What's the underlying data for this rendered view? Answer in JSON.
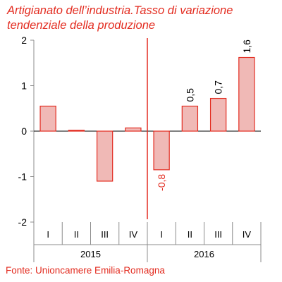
{
  "title_lines": [
    "Artigianato dell’industria.Tasso di variazione",
    "tendenziale della produzione"
  ],
  "source": "Fonte: Unioncamere Emilia-Romagna",
  "colors": {
    "accent": "#e32c20",
    "bar_fill": "#f0b9b6",
    "bar_stroke": "#e32c20",
    "axis": "#8c8c8c",
    "text": "#000000"
  },
  "chart_data": {
    "type": "bar",
    "years": [
      {
        "label": "2015",
        "quarters": [
          "I",
          "II",
          "III",
          "IV"
        ]
      },
      {
        "label": "2016",
        "quarters": [
          "I",
          "II",
          "III",
          "IV"
        ]
      }
    ],
    "values": [
      0.55,
      0.02,
      -1.1,
      0.07,
      -0.85,
      0.55,
      0.72,
      1.62
    ],
    "data_labels": [
      null,
      null,
      null,
      null,
      "-0,8",
      "0,5",
      "0,7",
      "1,6"
    ],
    "ylim": [
      -2,
      2
    ],
    "yticks": [
      "-2",
      "-1",
      "0",
      "1",
      "2"
    ],
    "xlabel": "",
    "ylabel": "",
    "grid": false,
    "divider_between_years": true
  }
}
